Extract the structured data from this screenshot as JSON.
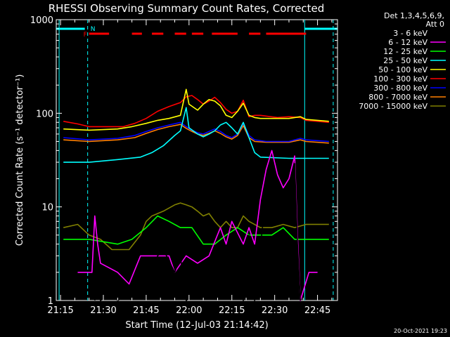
{
  "chart_data": {
    "type": "line",
    "title": "RHESSI Observing Summary Count Rates, Corrected",
    "xlabel": "Start Time (12-Jul-03 21:14:42)",
    "ylabel": "Corrected Count Rate (s⁻¹ detector⁻¹)",
    "yscale": "log",
    "ylim": [
      1,
      1000
    ],
    "xlim_minutes_from_2115": [
      -1.5,
      97
    ],
    "x_ticks": [
      "21:15",
      "21:30",
      "21:45",
      "22:00",
      "22:15",
      "22:30",
      "22:45"
    ],
    "y_ticks": [
      "1",
      "10",
      "100",
      "1000"
    ],
    "legend_title": [
      "Det 1,3,4,5,6,9,",
      "Att 0"
    ],
    "legend_placement": "right",
    "footer_date": "20-Oct-2021 19:23",
    "flags": {
      "N_label": "N",
      "F_label": "F"
    },
    "series": [
      {
        "name": "3 - 6 keV",
        "color": "#000000",
        "points": [
          [
            12,
            1
          ],
          [
            13,
            1.5
          ],
          [
            14,
            1
          ],
          [
            18,
            1.2
          ],
          [
            20,
            1
          ],
          [
            30,
            1.5
          ],
          [
            34,
            3
          ],
          [
            36,
            3.5
          ],
          [
            40,
            2
          ],
          [
            42,
            3
          ],
          [
            44,
            1
          ],
          [
            50,
            1.5
          ],
          [
            52,
            1.2
          ],
          [
            54,
            3
          ],
          [
            58,
            1.2
          ],
          [
            60,
            4
          ],
          [
            64,
            1
          ],
          [
            66,
            5
          ],
          [
            68,
            1
          ],
          [
            72,
            14
          ],
          [
            74,
            24
          ],
          [
            76,
            14
          ],
          [
            78,
            10
          ],
          [
            80,
            14
          ],
          [
            82,
            29
          ],
          [
            83,
            4
          ],
          [
            84,
            1
          ]
        ]
      },
      {
        "name": "6 - 12 keV",
        "color": "#ff00ff",
        "points": [
          [
            6,
            2
          ],
          [
            11,
            2
          ],
          [
            12,
            8
          ],
          [
            13,
            4
          ],
          [
            14,
            2.5
          ],
          [
            20,
            2
          ],
          [
            24,
            1.5
          ],
          [
            28,
            3
          ],
          [
            34,
            3
          ],
          [
            38,
            3
          ],
          [
            40,
            2
          ],
          [
            44,
            3
          ],
          [
            48,
            2.5
          ],
          [
            52,
            3
          ],
          [
            56,
            6
          ],
          [
            58,
            4
          ],
          [
            60,
            7
          ],
          [
            64,
            4
          ],
          [
            66,
            6
          ],
          [
            68,
            4
          ],
          [
            70,
            12
          ],
          [
            72,
            25
          ],
          [
            74,
            40
          ],
          [
            76,
            22
          ],
          [
            78,
            16
          ],
          [
            80,
            20
          ],
          [
            82,
            35
          ],
          [
            83,
            5
          ],
          [
            84,
            1
          ],
          [
            87,
            2
          ],
          [
            90,
            2
          ]
        ]
      },
      {
        "name": "12 - 25 keV",
        "color": "#00ff00",
        "points": [
          [
            1,
            4.5
          ],
          [
            10,
            4.5
          ],
          [
            20,
            4
          ],
          [
            25,
            4.5
          ],
          [
            30,
            6
          ],
          [
            34,
            8
          ],
          [
            38,
            7
          ],
          [
            42,
            6
          ],
          [
            46,
            6
          ],
          [
            50,
            4
          ],
          [
            54,
            4
          ],
          [
            58,
            5
          ],
          [
            62,
            6
          ],
          [
            66,
            5
          ],
          [
            70,
            5
          ],
          [
            74,
            5
          ],
          [
            78,
            6
          ],
          [
            82,
            4.5
          ],
          [
            86,
            4.5
          ],
          [
            94,
            4.5
          ]
        ]
      },
      {
        "name": "25 - 50 keV",
        "color": "#00ffff",
        "points": [
          [
            1,
            30
          ],
          [
            10,
            30
          ],
          [
            20,
            32
          ],
          [
            28,
            34
          ],
          [
            32,
            38
          ],
          [
            36,
            45
          ],
          [
            40,
            58
          ],
          [
            42,
            65
          ],
          [
            44,
            115
          ],
          [
            45,
            70
          ],
          [
            48,
            60
          ],
          [
            50,
            56
          ],
          [
            52,
            60
          ],
          [
            54,
            65
          ],
          [
            56,
            75
          ],
          [
            58,
            80
          ],
          [
            60,
            70
          ],
          [
            62,
            60
          ],
          [
            64,
            80
          ],
          [
            66,
            55
          ],
          [
            68,
            38
          ],
          [
            70,
            34
          ],
          [
            80,
            33
          ],
          [
            86,
            33
          ],
          [
            94,
            33
          ]
        ]
      },
      {
        "name": "50 - 100 keV",
        "color": "#ffff00",
        "points": [
          [
            1,
            68
          ],
          [
            10,
            66
          ],
          [
            20,
            68
          ],
          [
            25,
            72
          ],
          [
            30,
            78
          ],
          [
            34,
            84
          ],
          [
            38,
            88
          ],
          [
            42,
            95
          ],
          [
            44,
            180
          ],
          [
            45,
            125
          ],
          [
            48,
            108
          ],
          [
            50,
            125
          ],
          [
            52,
            140
          ],
          [
            54,
            135
          ],
          [
            56,
            120
          ],
          [
            58,
            95
          ],
          [
            60,
            90
          ],
          [
            62,
            105
          ],
          [
            64,
            128
          ],
          [
            66,
            95
          ],
          [
            68,
            90
          ],
          [
            70,
            88
          ],
          [
            80,
            88
          ],
          [
            84,
            92
          ],
          [
            86,
            86
          ],
          [
            90,
            84
          ],
          [
            94,
            82
          ]
        ]
      },
      {
        "name": "100 - 300 keV",
        "color": "#ff0000",
        "points": [
          [
            1,
            82
          ],
          [
            6,
            77
          ],
          [
            10,
            72
          ],
          [
            14,
            72
          ],
          [
            18,
            72
          ],
          [
            22,
            72
          ],
          [
            26,
            78
          ],
          [
            30,
            88
          ],
          [
            34,
            105
          ],
          [
            38,
            118
          ],
          [
            42,
            130
          ],
          [
            44,
            150
          ],
          [
            46,
            155
          ],
          [
            48,
            140
          ],
          [
            50,
            125
          ],
          [
            52,
            135
          ],
          [
            54,
            148
          ],
          [
            56,
            130
          ],
          [
            58,
            110
          ],
          [
            60,
            100
          ],
          [
            62,
            105
          ],
          [
            64,
            138
          ],
          [
            66,
            92
          ],
          [
            68,
            95
          ],
          [
            70,
            95
          ],
          [
            76,
            90
          ],
          [
            80,
            92
          ],
          [
            84,
            90
          ],
          [
            86,
            84
          ],
          [
            90,
            82
          ],
          [
            94,
            80
          ]
        ]
      },
      {
        "name": "300 - 800 keV",
        "color": "#0000ff",
        "points": [
          [
            1,
            55
          ],
          [
            10,
            52
          ],
          [
            20,
            54
          ],
          [
            26,
            58
          ],
          [
            30,
            64
          ],
          [
            34,
            70
          ],
          [
            38,
            75
          ],
          [
            42,
            80
          ],
          [
            44,
            72
          ],
          [
            46,
            66
          ],
          [
            48,
            62
          ],
          [
            50,
            60
          ],
          [
            52,
            64
          ],
          [
            54,
            68
          ],
          [
            56,
            64
          ],
          [
            58,
            58
          ],
          [
            60,
            55
          ],
          [
            62,
            60
          ],
          [
            64,
            78
          ],
          [
            66,
            58
          ],
          [
            68,
            52
          ],
          [
            72,
            50
          ],
          [
            80,
            50
          ],
          [
            84,
            54
          ],
          [
            86,
            52
          ],
          [
            94,
            50
          ]
        ]
      },
      {
        "name": "800 - 7000 keV",
        "color": "#ff8000",
        "points": [
          [
            1,
            52
          ],
          [
            10,
            50
          ],
          [
            20,
            52
          ],
          [
            26,
            55
          ],
          [
            30,
            61
          ],
          [
            34,
            67
          ],
          [
            38,
            72
          ],
          [
            42,
            76
          ],
          [
            44,
            69
          ],
          [
            46,
            64
          ],
          [
            48,
            60
          ],
          [
            50,
            58
          ],
          [
            52,
            61
          ],
          [
            54,
            65
          ],
          [
            56,
            61
          ],
          [
            58,
            56
          ],
          [
            60,
            53
          ],
          [
            62,
            58
          ],
          [
            64,
            74
          ],
          [
            66,
            55
          ],
          [
            68,
            50
          ],
          [
            72,
            49
          ],
          [
            80,
            49
          ],
          [
            84,
            52
          ],
          [
            86,
            50
          ],
          [
            94,
            48
          ]
        ]
      },
      {
        "name": "7000 - 15000 keV",
        "color": "#808000",
        "points": [
          [
            1,
            6
          ],
          [
            6,
            6.5
          ],
          [
            10,
            5
          ],
          [
            14,
            4.5
          ],
          [
            18,
            3.5
          ],
          [
            24,
            3.5
          ],
          [
            28,
            5
          ],
          [
            30,
            7
          ],
          [
            32,
            8
          ],
          [
            36,
            9
          ],
          [
            40,
            10.5
          ],
          [
            42,
            11
          ],
          [
            44,
            10.5
          ],
          [
            46,
            10
          ],
          [
            48,
            9
          ],
          [
            50,
            8
          ],
          [
            52,
            8.5
          ],
          [
            54,
            7
          ],
          [
            56,
            6
          ],
          [
            58,
            7
          ],
          [
            60,
            6
          ],
          [
            62,
            6
          ],
          [
            64,
            8
          ],
          [
            66,
            7
          ],
          [
            70,
            6
          ],
          [
            74,
            6
          ],
          [
            78,
            6.5
          ],
          [
            82,
            6
          ],
          [
            86,
            6.5
          ],
          [
            90,
            6.5
          ],
          [
            94,
            6.5
          ]
        ]
      }
    ],
    "attenuator_segments_minutes": [
      [
        -1.5,
        8.5
      ],
      [
        85.5,
        97
      ]
    ],
    "flare_segments_minutes": [
      [
        10,
        17
      ],
      [
        25,
        28.5
      ],
      [
        32,
        36
      ],
      [
        40,
        44
      ],
      [
        46,
        50
      ],
      [
        53,
        62
      ],
      [
        66,
        70
      ],
      [
        72,
        86
      ]
    ],
    "saa_markers_minutes": [
      -0.5,
      9.5,
      85.5,
      95.5
    ]
  }
}
